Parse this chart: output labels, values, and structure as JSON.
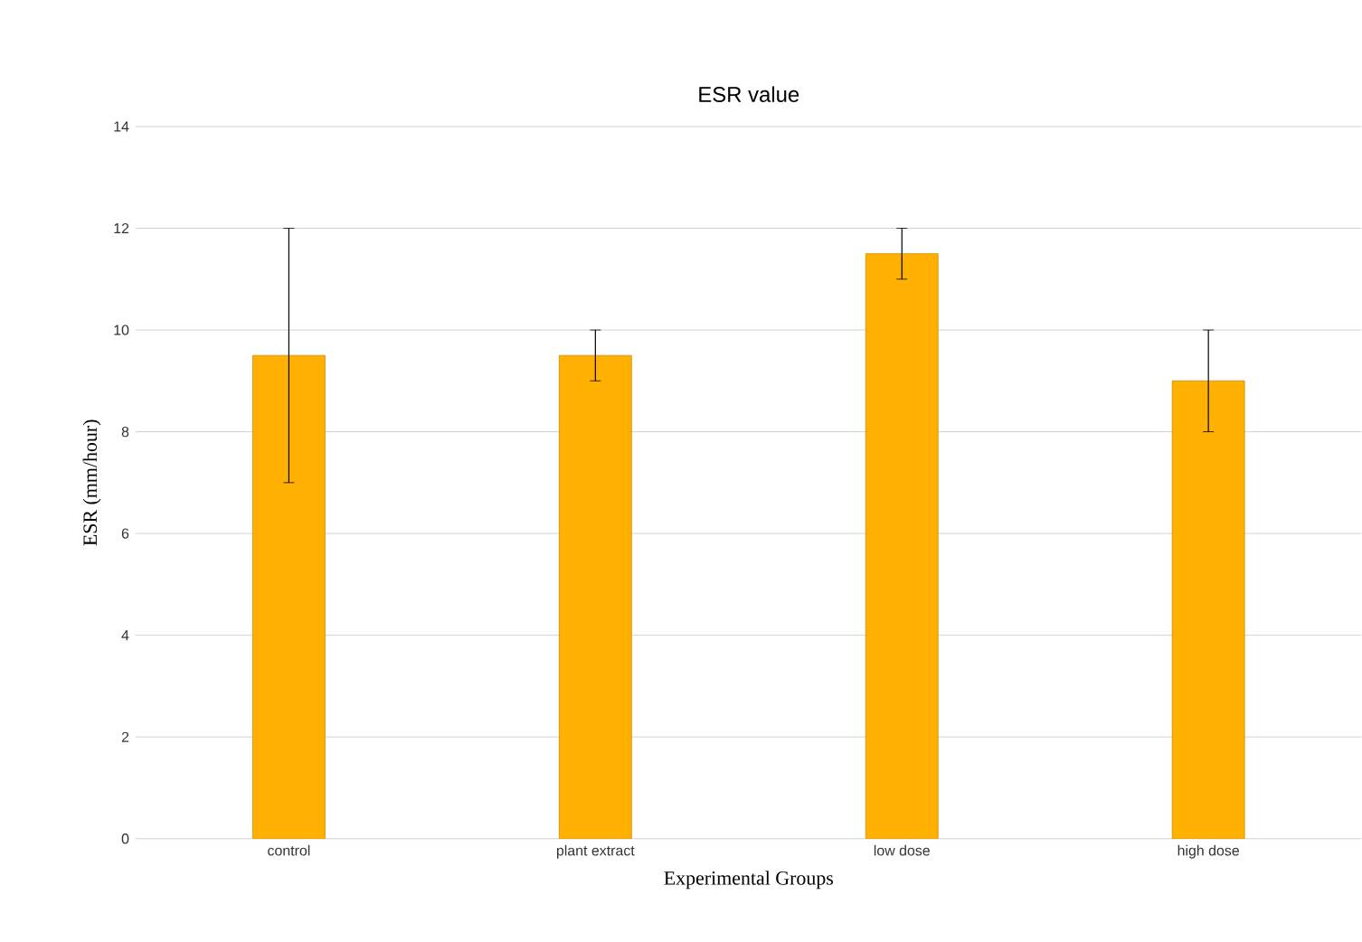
{
  "chart_data": {
    "type": "bar",
    "title": "ESR value",
    "xlabel": "Experimental Groups",
    "ylabel": "ESR (mm/hour)",
    "categories": [
      "control",
      "plant extract",
      "low dose",
      "high dose"
    ],
    "values": [
      9.5,
      9.5,
      11.5,
      9
    ],
    "errors": [
      2.5,
      0.5,
      0.5,
      1
    ],
    "color": "#ffb000",
    "ylim": [
      0,
      14
    ],
    "yticks": [
      0,
      2,
      4,
      6,
      8,
      10,
      12,
      14
    ],
    "grid": "y"
  }
}
